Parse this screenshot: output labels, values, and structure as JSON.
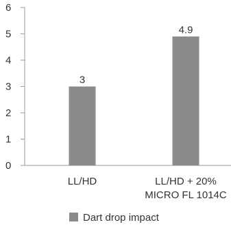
{
  "chart_data": {
    "type": "bar",
    "categories": [
      [
        "LL/HD"
      ],
      [
        "LL/HD + 20%",
        "MICRO FL 1014C"
      ]
    ],
    "series": [
      {
        "name": "Dart drop impact",
        "values": [
          3,
          4.9
        ],
        "color": "#8a8a8a"
      }
    ],
    "data_labels": [
      "3",
      "4.9"
    ],
    "y_ticks": [
      "0",
      "1",
      "2",
      "3",
      "4",
      "5",
      "6"
    ],
    "ylim": [
      0,
      6
    ],
    "grid": false,
    "axis_color": "#9a9a9a",
    "legend_position": "bottom"
  }
}
